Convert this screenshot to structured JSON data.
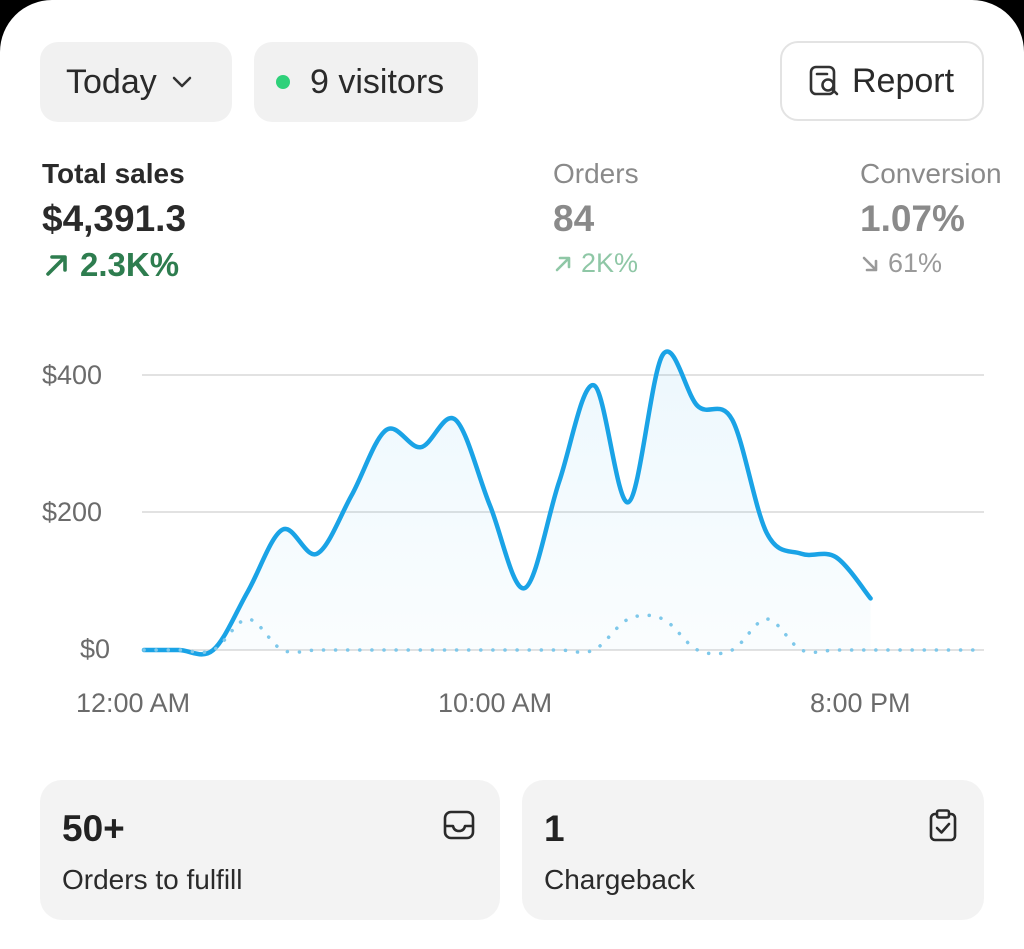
{
  "toolbar": {
    "date_range": "Today",
    "visitors": "9 visitors",
    "report_label": "Report"
  },
  "metrics": [
    {
      "label": "Total sales",
      "value": "$4,391.3",
      "change": "2.3K%",
      "direction": "up",
      "color": "#2e7d4f"
    },
    {
      "label": "Orders",
      "value": "84",
      "change": "2K%",
      "direction": "up",
      "color": "#8fc7a6"
    },
    {
      "label": "Conversion",
      "value": "1.07%",
      "change": "61%",
      "direction": "down",
      "color": "#9a9a9a"
    }
  ],
  "chart_data": {
    "type": "line",
    "y_ticks": [
      "$400",
      "$200",
      "$0"
    ],
    "x_ticks": [
      "12:00 AM",
      "10:00 AM",
      "8:00 PM"
    ],
    "ylim": [
      0,
      400
    ],
    "series": [
      {
        "style": "solid",
        "color": "#1aa3e6",
        "points": [
          [
            0,
            0
          ],
          [
            1,
            0
          ],
          [
            2,
            0
          ],
          [
            3,
            85
          ],
          [
            4,
            175
          ],
          [
            5,
            140
          ],
          [
            6,
            225
          ],
          [
            7,
            320
          ],
          [
            8,
            295
          ],
          [
            9,
            335
          ],
          [
            10,
            210
          ],
          [
            11,
            90
          ],
          [
            12,
            245
          ],
          [
            13,
            385
          ],
          [
            14,
            215
          ],
          [
            15,
            430
          ],
          [
            16,
            355
          ],
          [
            17,
            335
          ],
          [
            18,
            170
          ],
          [
            19,
            140
          ],
          [
            20,
            135
          ],
          [
            21,
            75
          ]
        ]
      },
      {
        "style": "dotted",
        "color": "#7ec8ea",
        "points": [
          [
            0,
            0
          ],
          [
            1,
            0
          ],
          [
            2,
            0
          ],
          [
            3,
            45
          ],
          [
            4,
            0
          ],
          [
            5,
            0
          ],
          [
            6,
            0
          ],
          [
            7,
            0
          ],
          [
            8,
            0
          ],
          [
            9,
            0
          ],
          [
            10,
            0
          ],
          [
            11,
            0
          ],
          [
            12,
            0
          ],
          [
            13,
            0
          ],
          [
            14,
            45
          ],
          [
            15,
            45
          ],
          [
            16,
            0
          ],
          [
            17,
            0
          ],
          [
            18,
            45
          ],
          [
            19,
            0
          ],
          [
            20,
            0
          ],
          [
            21,
            0
          ],
          [
            22,
            0
          ],
          [
            23,
            0
          ],
          [
            24,
            0
          ]
        ]
      }
    ]
  },
  "tiles": [
    {
      "value": "50+",
      "label": "Orders to fulfill",
      "icon": "inbox-icon"
    },
    {
      "value": "1",
      "label": "Chargeback",
      "icon": "clipboard-check-icon"
    }
  ]
}
